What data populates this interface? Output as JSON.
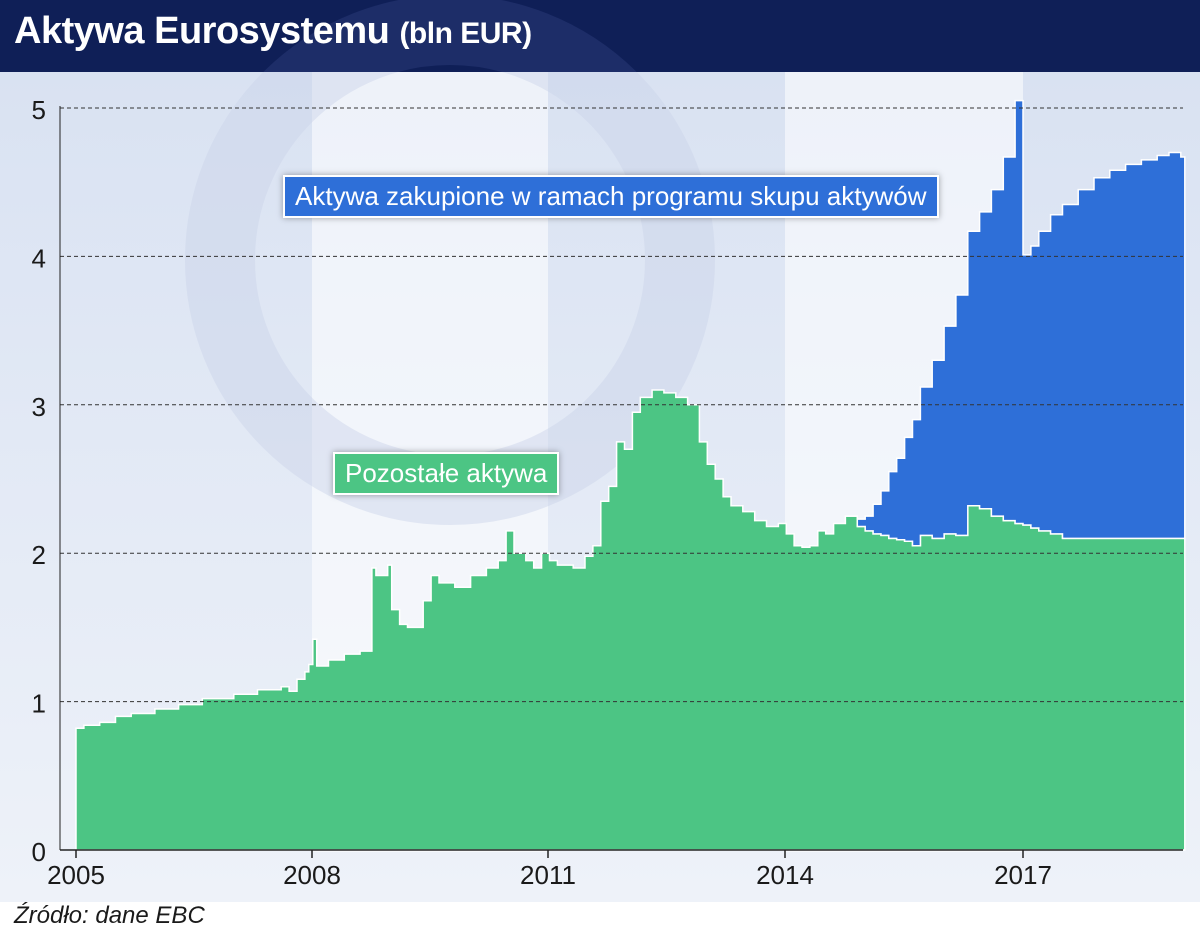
{
  "header": {
    "title": "Aktywa Eurosystemu",
    "unit": "(bln EUR)"
  },
  "source": "Źródło: dane EBC",
  "colors": {
    "header_bg": "#0f1f57",
    "other_assets": "#4cc584",
    "app_assets": "#2e6fd8"
  },
  "chart_data": {
    "type": "area",
    "title": "Aktywa Eurosystemu (bln EUR)",
    "stacked": true,
    "xlim": [
      2005,
      2019.05
    ],
    "ylim": [
      0,
      5
    ],
    "yticks": [
      0,
      1,
      2,
      3,
      4,
      5
    ],
    "xticks": [
      "2005",
      "2008",
      "2011",
      "2014",
      "2017"
    ],
    "grid": "horizontal dashed",
    "series": [
      {
        "name": "Pozostałe aktywa",
        "color": "#4cc584",
        "x": [
          2005.0,
          2005.1,
          2005.3,
          2005.5,
          2005.7,
          2006.0,
          2006.3,
          2006.6,
          2007.0,
          2007.3,
          2007.6,
          2007.7,
          2007.8,
          2007.9,
          2007.95,
          2008.0,
          2008.05,
          2008.2,
          2008.4,
          2008.6,
          2008.75,
          2008.8,
          2008.95,
          2009.0,
          2009.1,
          2009.2,
          2009.4,
          2009.5,
          2009.6,
          2009.8,
          2010.0,
          2010.2,
          2010.35,
          2010.45,
          2010.55,
          2010.7,
          2010.8,
          2010.9,
          2011.0,
          2011.1,
          2011.3,
          2011.45,
          2011.55,
          2011.65,
          2011.75,
          2011.85,
          2011.95,
          2012.05,
          2012.15,
          2012.3,
          2012.45,
          2012.6,
          2012.75,
          2012.9,
          2013.0,
          2013.1,
          2013.2,
          2013.3,
          2013.45,
          2013.6,
          2013.75,
          2013.9,
          2014.0,
          2014.1,
          2014.2,
          2014.3,
          2014.4,
          2014.5,
          2014.6,
          2014.75,
          2014.9,
          2015.0,
          2015.1,
          2015.2,
          2015.3,
          2015.4,
          2015.5,
          2015.6,
          2015.7,
          2015.85,
          2016.0,
          2016.15,
          2016.3,
          2016.45,
          2016.6,
          2016.75,
          2016.9,
          2017.0,
          2017.1,
          2017.2,
          2017.35,
          2017.5,
          2017.7,
          2017.9,
          2018.1,
          2018.3,
          2018.5,
          2018.7,
          2018.85,
          2019.0
        ],
        "values": [
          0.82,
          0.84,
          0.86,
          0.9,
          0.92,
          0.95,
          0.98,
          1.02,
          1.05,
          1.08,
          1.1,
          1.07,
          1.15,
          1.2,
          1.25,
          1.42,
          1.24,
          1.28,
          1.32,
          1.34,
          1.9,
          1.85,
          1.92,
          1.62,
          1.52,
          1.5,
          1.68,
          1.85,
          1.8,
          1.77,
          1.85,
          1.9,
          1.95,
          2.15,
          2.0,
          1.95,
          1.9,
          2.0,
          1.95,
          1.92,
          1.9,
          1.98,
          2.05,
          2.35,
          2.45,
          2.75,
          2.7,
          2.95,
          3.05,
          3.1,
          3.08,
          3.05,
          3.0,
          2.75,
          2.6,
          2.5,
          2.38,
          2.32,
          2.28,
          2.22,
          2.18,
          2.2,
          2.13,
          2.05,
          2.04,
          2.05,
          2.15,
          2.13,
          2.2,
          2.25,
          2.18,
          2.15,
          2.13,
          2.12,
          2.1,
          2.09,
          2.08,
          2.05,
          2.12,
          2.1,
          2.13,
          2.12,
          2.32,
          2.3,
          2.25,
          2.22,
          2.2,
          2.19,
          2.17,
          2.15,
          2.13,
          2.1,
          2.1,
          2.1,
          2.1,
          2.1,
          2.1,
          2.1,
          2.1,
          2.1
        ]
      },
      {
        "name": "Aktywa zakupione w ramach programu skupu aktywów",
        "color": "#2e6fd8",
        "x": [
          2014.75,
          2014.9,
          2015.0,
          2015.1,
          2015.2,
          2015.3,
          2015.4,
          2015.5,
          2015.6,
          2015.7,
          2015.85,
          2016.0,
          2016.15,
          2016.3,
          2016.45,
          2016.6,
          2016.75,
          2016.9,
          2017.0,
          2017.1,
          2017.2,
          2017.35,
          2017.5,
          2017.7,
          2017.9,
          2018.1,
          2018.3,
          2018.5,
          2018.7,
          2018.85,
          2019.0
        ],
        "values": [
          0.0,
          0.05,
          0.1,
          0.2,
          0.3,
          0.45,
          0.55,
          0.7,
          0.85,
          1.0,
          1.2,
          1.4,
          1.62,
          1.85,
          2.0,
          2.2,
          2.45,
          2.85,
          1.82,
          1.9,
          2.02,
          2.15,
          2.25,
          2.35,
          2.43,
          2.48,
          2.52,
          2.55,
          2.58,
          2.6,
          2.57
        ]
      }
    ]
  }
}
